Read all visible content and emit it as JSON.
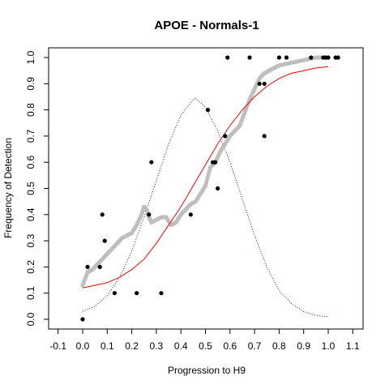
{
  "chart_data": {
    "type": "scatter",
    "title": "APOE - Normals-1",
    "xlabel": "Progression to H9",
    "ylabel": "Frequency of Detection",
    "xlim": [
      -0.1,
      1.1
    ],
    "ylim": [
      0.0,
      1.0
    ],
    "xticks": [
      "-0.1",
      "0.0",
      "0.1",
      "0.2",
      "0.3",
      "0.4",
      "0.5",
      "0.6",
      "0.7",
      "0.8",
      "0.9",
      "1.0",
      "1.1"
    ],
    "yticks": [
      "0.0",
      "0.1",
      "0.2",
      "0.3",
      "0.4",
      "0.5",
      "0.6",
      "0.7",
      "0.8",
      "0.9",
      "1.0"
    ],
    "grid": false,
    "colors": {
      "points": "#000000",
      "smooth": "#bebebe",
      "fit": "#ff0000",
      "density": "#0000ff"
    },
    "series": [
      {
        "style": "black-points",
        "x": [
          0.0,
          0.02,
          0.07,
          0.08,
          0.09,
          0.13,
          0.22,
          0.27,
          0.28,
          0.32,
          0.44,
          0.51,
          0.53,
          0.54,
          0.55,
          0.58,
          0.59,
          0.68,
          0.72,
          0.74,
          0.74,
          0.8,
          0.83,
          0.93,
          0.98,
          0.99,
          1.0,
          1.03,
          1.04
        ],
        "y": [
          0.0,
          0.2,
          0.2,
          0.4,
          0.3,
          0.1,
          0.1,
          0.4,
          0.6,
          0.1,
          0.4,
          0.8,
          0.6,
          0.6,
          0.5,
          0.7,
          1.0,
          1.0,
          0.9,
          0.9,
          0.7,
          1.0,
          1.0,
          1.0,
          1.0,
          1.0,
          1.0,
          1.0,
          1.0
        ]
      },
      {
        "style": "gray-smooth",
        "x": [
          0.0,
          0.02,
          0.04,
          0.06,
          0.08,
          0.1,
          0.12,
          0.14,
          0.16,
          0.18,
          0.2,
          0.22,
          0.24,
          0.25,
          0.26,
          0.27,
          0.28,
          0.3,
          0.32,
          0.34,
          0.36,
          0.38,
          0.4,
          0.42,
          0.44,
          0.46,
          0.48,
          0.5,
          0.52,
          0.54,
          0.56,
          0.58,
          0.6,
          0.62,
          0.64,
          0.66,
          0.68,
          0.7,
          0.72,
          0.74,
          0.76,
          0.78,
          0.8,
          0.85,
          0.9,
          0.95,
          1.0
        ],
        "y": [
          0.13,
          0.18,
          0.19,
          0.21,
          0.23,
          0.25,
          0.27,
          0.29,
          0.31,
          0.32,
          0.33,
          0.36,
          0.4,
          0.43,
          0.42,
          0.39,
          0.37,
          0.38,
          0.39,
          0.39,
          0.36,
          0.37,
          0.4,
          0.42,
          0.44,
          0.45,
          0.48,
          0.51,
          0.58,
          0.6,
          0.64,
          0.67,
          0.7,
          0.72,
          0.74,
          0.79,
          0.84,
          0.88,
          0.92,
          0.94,
          0.95,
          0.96,
          0.97,
          0.98,
          0.99,
          1.0,
          1.0
        ]
      },
      {
        "style": "red-fit",
        "x": [
          0.0,
          0.05,
          0.1,
          0.15,
          0.2,
          0.25,
          0.3,
          0.35,
          0.4,
          0.45,
          0.5,
          0.55,
          0.6,
          0.65,
          0.7,
          0.75,
          0.8,
          0.85,
          0.9,
          0.95,
          1.0
        ],
        "y": [
          0.12,
          0.13,
          0.14,
          0.16,
          0.19,
          0.23,
          0.29,
          0.36,
          0.43,
          0.51,
          0.59,
          0.67,
          0.74,
          0.8,
          0.85,
          0.89,
          0.92,
          0.94,
          0.95,
          0.96,
          0.965
        ]
      },
      {
        "style": "blue-density",
        "x": [
          0.0,
          0.05,
          0.1,
          0.15,
          0.2,
          0.25,
          0.3,
          0.35,
          0.4,
          0.45,
          0.46,
          0.5,
          0.55,
          0.6,
          0.65,
          0.7,
          0.75,
          0.8,
          0.85,
          0.9,
          0.95,
          1.0
        ],
        "y": [
          0.03,
          0.05,
          0.09,
          0.16,
          0.26,
          0.39,
          0.53,
          0.67,
          0.78,
          0.84,
          0.845,
          0.81,
          0.72,
          0.6,
          0.46,
          0.32,
          0.2,
          0.11,
          0.06,
          0.03,
          0.015,
          0.01
        ]
      }
    ]
  }
}
